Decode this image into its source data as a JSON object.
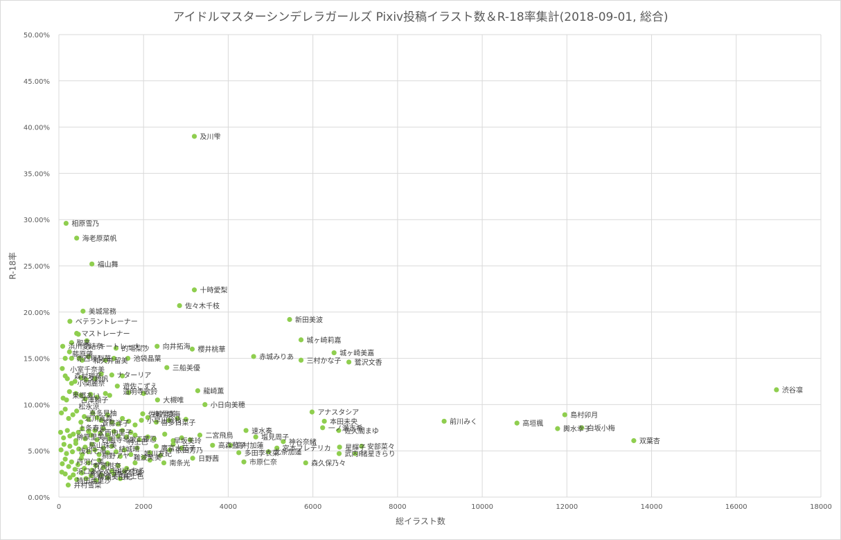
{
  "chart_data": {
    "type": "scatter",
    "title": "アイドルマスターシンデレラガールズ Pixiv投稿イラスト数＆R-18率集計(2018-09-01, 総合)",
    "xlabel": "総イラスト数",
    "ylabel": "R-18率",
    "xlim": [
      0,
      18000
    ],
    "ylim": [
      0,
      0.5
    ],
    "x_ticks": [
      "0",
      "2000",
      "4000",
      "6000",
      "8000",
      "10000",
      "12000",
      "14000",
      "16000",
      "18000"
    ],
    "y_ticks": [
      "0.00%",
      "5.00%",
      "10.00%",
      "15.00%",
      "20.00%",
      "25.00%",
      "30.00%",
      "35.00%",
      "40.00%",
      "45.00%",
      "50.00%"
    ],
    "grid": true,
    "marker_color": "#8fce4f",
    "points": [
      {
        "name": "渋谷凛",
        "x": 16950,
        "y": 0.116
      },
      {
        "name": "島村卯月",
        "x": 11950,
        "y": 0.089
      },
      {
        "name": "高垣楓",
        "x": 10820,
        "y": 0.08
      },
      {
        "name": "前川みく",
        "x": 9100,
        "y": 0.082
      },
      {
        "name": "輿水幸子",
        "x": 11780,
        "y": 0.074
      },
      {
        "name": "白坂小梅",
        "x": 12350,
        "y": 0.075
      },
      {
        "name": "双葉杏",
        "x": 13580,
        "y": 0.061
      },
      {
        "name": "及川雫",
        "x": 3200,
        "y": 0.39
      },
      {
        "name": "相原雪乃",
        "x": 170,
        "y": 0.296
      },
      {
        "name": "海老原菜帆",
        "x": 420,
        "y": 0.28
      },
      {
        "name": "福山舞",
        "x": 780,
        "y": 0.252
      },
      {
        "name": "十時愛梨",
        "x": 3200,
        "y": 0.224
      },
      {
        "name": "佐々木千枝",
        "x": 2850,
        "y": 0.207
      },
      {
        "name": "美城常務",
        "x": 570,
        "y": 0.201
      },
      {
        "name": "新田美波",
        "x": 5450,
        "y": 0.192
      },
      {
        "name": "ベテラントレーナー",
        "x": 260,
        "y": 0.19
      },
      {
        "name": "城ヶ崎莉嘉",
        "x": 5720,
        "y": 0.17
      },
      {
        "name": "向井拓海",
        "x": 2320,
        "y": 0.163
      },
      {
        "name": "的場梨沙",
        "x": 1350,
        "y": 0.161
      },
      {
        "name": "櫻井桃華",
        "x": 3150,
        "y": 0.16
      },
      {
        "name": "城ヶ崎美嘉",
        "x": 6500,
        "y": 0.156
      },
      {
        "name": "赤城みりあ",
        "x": 4600,
        "y": 0.152
      },
      {
        "name": "三村かな子",
        "x": 5720,
        "y": 0.148
      },
      {
        "name": "鷺沢文香",
        "x": 6850,
        "y": 0.146
      },
      {
        "name": "池袋晶葉",
        "x": 1630,
        "y": 0.15
      },
      {
        "name": "三船美優",
        "x": 2550,
        "y": 0.14
      },
      {
        "name": "浜川愛結奈",
        "x": 90,
        "y": 0.163
      },
      {
        "name": "龍崎薫",
        "x": 3280,
        "y": 0.115
      },
      {
        "name": "遊佐こずえ",
        "x": 1380,
        "y": 0.12
      },
      {
        "name": "大槻唯",
        "x": 2330,
        "y": 0.105
      },
      {
        "name": "小日向美穂",
        "x": 3450,
        "y": 0.1
      },
      {
        "name": "アナスタシア",
        "x": 5980,
        "y": 0.092
      },
      {
        "name": "本田未央",
        "x": 6270,
        "y": 0.082
      },
      {
        "name": "一ノ瀬志希",
        "x": 6230,
        "y": 0.075
      },
      {
        "name": "佐久間まゆ",
        "x": 6610,
        "y": 0.072
      },
      {
        "name": "速水奏",
        "x": 4420,
        "y": 0.072
      },
      {
        "name": "塩見周子",
        "x": 4650,
        "y": 0.065
      },
      {
        "name": "二宮飛鳥",
        "x": 3330,
        "y": 0.067
      },
      {
        "name": "神谷奈緒",
        "x": 5300,
        "y": 0.06
      },
      {
        "name": "高森藍子",
        "x": 3630,
        "y": 0.056
      },
      {
        "name": "島村加蓮",
        "x": 4050,
        "y": 0.056
      },
      {
        "name": "宮本フレデリカ",
        "x": 5150,
        "y": 0.053
      },
      {
        "name": "多田李衣菜",
        "x": 4250,
        "y": 0.048
      },
      {
        "name": "北条加蓮",
        "x": 4950,
        "y": 0.049
      },
      {
        "name": "星輝子",
        "x": 6630,
        "y": 0.054
      },
      {
        "name": "安部菜々",
        "x": 7150,
        "y": 0.055
      },
      {
        "name": "武内P",
        "x": 6620,
        "y": 0.047
      },
      {
        "name": "諸星きらり",
        "x": 7000,
        "y": 0.047
      },
      {
        "name": "森久保乃々",
        "x": 5830,
        "y": 0.037
      },
      {
        "name": "市原仁奈",
        "x": 4370,
        "y": 0.038
      },
      {
        "name": "日野茜",
        "x": 3160,
        "y": 0.042
      },
      {
        "name": "依田芳乃",
        "x": 2620,
        "y": 0.051
      },
      {
        "name": "南条光",
        "x": 2480,
        "y": 0.037
      },
      {
        "name": "佐城雪美",
        "x": 1980,
        "y": 0.09
      },
      {
        "name": "小早川紗枝",
        "x": 1950,
        "y": 0.083
      },
      {
        "name": "井村雪菜",
        "x": 220,
        "y": 0.013
      }
    ],
    "minor_points": [
      [
        420,
        0.177
      ],
      [
        460,
        0.176
      ],
      [
        300,
        0.167
      ],
      [
        660,
        0.169
      ],
      [
        150,
        0.15
      ],
      [
        250,
        0.157
      ],
      [
        300,
        0.15
      ],
      [
        480,
        0.15
      ],
      [
        550,
        0.148
      ],
      [
        700,
        0.152
      ],
      [
        1100,
        0.148
      ],
      [
        1300,
        0.15
      ],
      [
        80,
        0.139
      ],
      [
        150,
        0.131
      ],
      [
        200,
        0.128
      ],
      [
        300,
        0.123
      ],
      [
        380,
        0.125
      ],
      [
        520,
        0.129
      ],
      [
        640,
        0.127
      ],
      [
        850,
        0.128
      ],
      [
        1000,
        0.133
      ],
      [
        1250,
        0.132
      ],
      [
        1500,
        0.131
      ],
      [
        100,
        0.107
      ],
      [
        180,
        0.105
      ],
      [
        250,
        0.114
      ],
      [
        400,
        0.112
      ],
      [
        520,
        0.11
      ],
      [
        620,
        0.106
      ],
      [
        750,
        0.111
      ],
      [
        900,
        0.108
      ],
      [
        1100,
        0.112
      ],
      [
        1200,
        0.11
      ],
      [
        1650,
        0.113
      ],
      [
        2000,
        0.112
      ],
      [
        60,
        0.091
      ],
      [
        150,
        0.095
      ],
      [
        230,
        0.085
      ],
      [
        330,
        0.089
      ],
      [
        420,
        0.093
      ],
      [
        520,
        0.081
      ],
      [
        600,
        0.087
      ],
      [
        700,
        0.084
      ],
      [
        800,
        0.091
      ],
      [
        900,
        0.086
      ],
      [
        1000,
        0.083
      ],
      [
        1150,
        0.089
      ],
      [
        1250,
        0.081
      ],
      [
        1400,
        0.079
      ],
      [
        1500,
        0.085
      ],
      [
        1650,
        0.082
      ],
      [
        1800,
        0.078
      ],
      [
        2100,
        0.086
      ],
      [
        2300,
        0.081
      ],
      [
        2600,
        0.083
      ],
      [
        2800,
        0.085
      ],
      [
        3000,
        0.084
      ],
      [
        40,
        0.07
      ],
      [
        110,
        0.064
      ],
      [
        200,
        0.072
      ],
      [
        260,
        0.066
      ],
      [
        340,
        0.068
      ],
      [
        400,
        0.061
      ],
      [
        460,
        0.07
      ],
      [
        550,
        0.074
      ],
      [
        620,
        0.063
      ],
      [
        700,
        0.071
      ],
      [
        760,
        0.067
      ],
      [
        850,
        0.072
      ],
      [
        900,
        0.062
      ],
      [
        980,
        0.069
      ],
      [
        1050,
        0.074
      ],
      [
        1150,
        0.067
      ],
      [
        1200,
        0.063
      ],
      [
        1300,
        0.071
      ],
      [
        1400,
        0.066
      ],
      [
        1500,
        0.072
      ],
      [
        1600,
        0.065
      ],
      [
        1700,
        0.07
      ],
      [
        1800,
        0.067
      ],
      [
        1900,
        0.062
      ],
      [
        2100,
        0.065
      ],
      [
        2250,
        0.063
      ],
      [
        2500,
        0.068
      ],
      [
        2700,
        0.061
      ],
      [
        2900,
        0.064
      ],
      [
        3100,
        0.062
      ],
      [
        50,
        0.051
      ],
      [
        120,
        0.057
      ],
      [
        180,
        0.047
      ],
      [
        260,
        0.055
      ],
      [
        320,
        0.049
      ],
      [
        400,
        0.058
      ],
      [
        470,
        0.052
      ],
      [
        550,
        0.046
      ],
      [
        620,
        0.054
      ],
      [
        700,
        0.049
      ],
      [
        780,
        0.057
      ],
      [
        850,
        0.051
      ],
      [
        950,
        0.046
      ],
      [
        1050,
        0.053
      ],
      [
        1150,
        0.048
      ],
      [
        1250,
        0.055
      ],
      [
        1350,
        0.049
      ],
      [
        1450,
        0.044
      ],
      [
        1550,
        0.051
      ],
      [
        1700,
        0.046
      ],
      [
        1850,
        0.053
      ],
      [
        2000,
        0.043
      ],
      [
        2150,
        0.048
      ],
      [
        2300,
        0.055
      ],
      [
        2400,
        0.045
      ],
      [
        2700,
        0.057
      ],
      [
        2900,
        0.053
      ],
      [
        80,
        0.036
      ],
      [
        150,
        0.041
      ],
      [
        230,
        0.033
      ],
      [
        300,
        0.038
      ],
      [
        380,
        0.03
      ],
      [
        450,
        0.035
      ],
      [
        530,
        0.042
      ],
      [
        600,
        0.031
      ],
      [
        700,
        0.037
      ],
      [
        780,
        0.029
      ],
      [
        870,
        0.034
      ],
      [
        950,
        0.04
      ],
      [
        1050,
        0.032
      ],
      [
        1150,
        0.036
      ],
      [
        1250,
        0.028
      ],
      [
        1400,
        0.034
      ],
      [
        1600,
        0.031
      ],
      [
        1800,
        0.037
      ],
      [
        2150,
        0.04
      ],
      [
        70,
        0.027
      ],
      [
        150,
        0.025
      ],
      [
        260,
        0.021
      ],
      [
        340,
        0.024
      ],
      [
        420,
        0.019
      ],
      [
        540,
        0.026
      ],
      [
        640,
        0.02
      ],
      [
        760,
        0.023
      ],
      [
        880,
        0.018
      ],
      [
        1000,
        0.024
      ],
      [
        1150,
        0.021
      ],
      [
        1300,
        0.025
      ],
      [
        1450,
        0.02
      ],
      [
        1550,
        0.028
      ]
    ],
    "minor_labels": [
      {
        "text": "マストレーナー",
        "x": 420,
        "y": 0.177
      },
      {
        "text": "聖来",
        "x": 300,
        "y": 0.167
      },
      {
        "text": "ルーキートレーナー",
        "x": 500,
        "y": 0.163
      },
      {
        "text": "藤原肇",
        "x": 200,
        "y": 0.155
      },
      {
        "text": "赤西瑛梨華",
        "x": 300,
        "y": 0.15
      },
      {
        "text": "和久井留美",
        "x": 700,
        "y": 0.148
      },
      {
        "text": "小室千奈美",
        "x": 150,
        "y": 0.138
      },
      {
        "text": "森村理奈",
        "x": 250,
        "y": 0.131
      },
      {
        "text": "オタ鈴帆",
        "x": 400,
        "y": 0.128
      },
      {
        "text": "ナターリア",
        "x": 1250,
        "y": 0.132
      },
      {
        "text": "小関麗奈",
        "x": 320,
        "y": 0.123
      },
      {
        "text": "道明寺歌鈴",
        "x": 1400,
        "y": 0.114
      },
      {
        "text": "東郷あい",
        "x": 200,
        "y": 0.11
      },
      {
        "text": "古澤頼子",
        "x": 400,
        "y": 0.105
      },
      {
        "text": "松永涼",
        "x": 350,
        "y": 0.098
      },
      {
        "text": "喜多見柚",
        "x": 600,
        "y": 0.091
      },
      {
        "text": "北川真尋",
        "x": 500,
        "y": 0.085
      },
      {
        "text": "斉藤洋子",
        "x": 900,
        "y": 0.08
      },
      {
        "text": "上条春菜",
        "x": 350,
        "y": 0.075
      },
      {
        "text": "大西由里子",
        "x": 800,
        "y": 0.07
      },
      {
        "text": "榊原里美",
        "x": 300,
        "y": 0.065
      },
      {
        "text": "西園寺琴歌",
        "x": 900,
        "y": 0.062
      },
      {
        "text": "村上巴",
        "x": 1500,
        "y": 0.06
      },
      {
        "text": "脇山珠美",
        "x": 600,
        "y": 0.056
      },
      {
        "text": "結城晴",
        "x": 1300,
        "y": 0.052
      },
      {
        "text": "浅利七海",
        "x": 350,
        "y": 0.05
      },
      {
        "text": "桐野アヤ",
        "x": 900,
        "y": 0.045
      },
      {
        "text": "難波笑美",
        "x": 1650,
        "y": 0.043
      },
      {
        "text": "丹羽仁美",
        "x": 300,
        "y": 0.038
      },
      {
        "text": "有浦柑奈",
        "x": 700,
        "y": 0.034
      },
      {
        "text": "浜口あやめ",
        "x": 300,
        "y": 0.028
      },
      {
        "text": "真鍋いつき",
        "x": 600,
        "y": 0.025
      },
      {
        "text": "柳瀬美由紀",
        "x": 800,
        "y": 0.022
      },
      {
        "text": "持田亜里沙",
        "x": 300,
        "y": 0.018
      },
      {
        "text": "梅木音葉",
        "x": 1200,
        "y": 0.027
      },
      {
        "text": "工藤忍",
        "x": 1700,
        "y": 0.063
      },
      {
        "text": "棟方愛海",
        "x": 2100,
        "y": 0.09
      },
      {
        "text": "喜多日菜子",
        "x": 2300,
        "y": 0.081
      },
      {
        "text": "早坂美玲",
        "x": 2600,
        "y": 0.061
      },
      {
        "text": "鷹富士茄子",
        "x": 2300,
        "y": 0.053
      },
      {
        "text": "姫川友紀",
        "x": 1900,
        "y": 0.047
      },
      {
        "text": "十川みちる",
        "x": 1100,
        "y": 0.029
      },
      {
        "text": "井上色",
        "x": 1400,
        "y": 0.023
      }
    ]
  }
}
